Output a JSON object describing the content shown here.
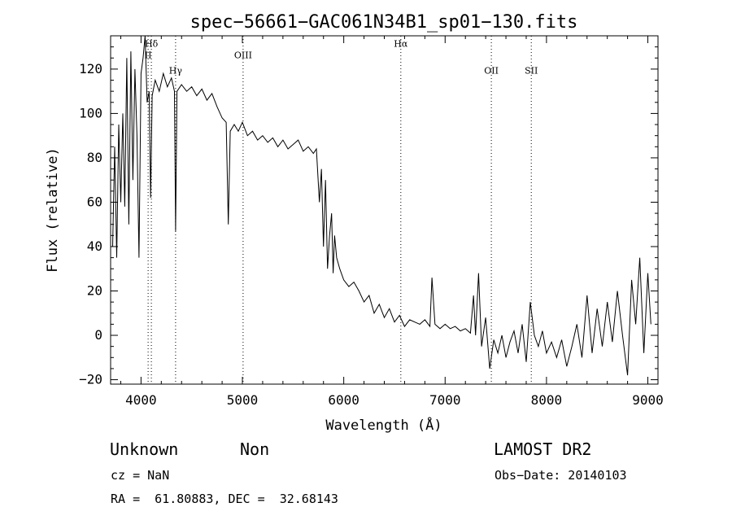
{
  "chart_data": {
    "type": "line",
    "title": "spec−56661−GAC061N34B1_sp01−130.fits",
    "xlabel": "Wavelength (Å)",
    "ylabel": "Flux (relative)",
    "xlim": [
      3700,
      9100
    ],
    "ylim": [
      -22,
      135
    ],
    "x_ticks": [
      4000,
      5000,
      6000,
      7000,
      8000,
      9000
    ],
    "y_ticks": [
      -20,
      0,
      20,
      40,
      60,
      80,
      100,
      120
    ],
    "grid": false,
    "line_color": "#000000",
    "lines": [
      {
        "label": "Hδ",
        "x": 4102,
        "label_y": 130
      },
      {
        "label": "II",
        "x": 4070,
        "label_y": 125
      },
      {
        "label": "Hγ",
        "x": 4341,
        "label_y": 118
      },
      {
        "label": "OIII",
        "x": 5007,
        "label_y": 125
      },
      {
        "label": "Hα",
        "x": 6563,
        "label_y": 130
      },
      {
        "label": "OII",
        "x": 7456,
        "label_y": 118
      },
      {
        "label": "SII",
        "x": 7850,
        "label_y": 118
      }
    ],
    "series": [
      {
        "values": [
          [
            3720,
            40
          ],
          [
            3740,
            85
          ],
          [
            3760,
            35
          ],
          [
            3780,
            95
          ],
          [
            3800,
            60
          ],
          [
            3820,
            100
          ],
          [
            3840,
            58
          ],
          [
            3860,
            125
          ],
          [
            3880,
            50
          ],
          [
            3900,
            128
          ],
          [
            3920,
            70
          ],
          [
            3940,
            120
          ],
          [
            3960,
            90
          ],
          [
            3980,
            35
          ],
          [
            4000,
            118
          ],
          [
            4020,
            125
          ],
          [
            4040,
            135
          ],
          [
            4060,
            105
          ],
          [
            4080,
            110
          ],
          [
            4095,
            62
          ],
          [
            4110,
            108
          ],
          [
            4140,
            115
          ],
          [
            4180,
            110
          ],
          [
            4220,
            118
          ],
          [
            4260,
            112
          ],
          [
            4300,
            116
          ],
          [
            4330,
            110
          ],
          [
            4341,
            47
          ],
          [
            4355,
            110
          ],
          [
            4400,
            113
          ],
          [
            4450,
            110
          ],
          [
            4500,
            112
          ],
          [
            4550,
            108
          ],
          [
            4600,
            111
          ],
          [
            4650,
            106
          ],
          [
            4700,
            109
          ],
          [
            4750,
            103
          ],
          [
            4800,
            98
          ],
          [
            4840,
            96
          ],
          [
            4861,
            50
          ],
          [
            4880,
            92
          ],
          [
            4920,
            95
          ],
          [
            4960,
            92
          ],
          [
            5000,
            96
          ],
          [
            5050,
            90
          ],
          [
            5100,
            92
          ],
          [
            5150,
            88
          ],
          [
            5200,
            90
          ],
          [
            5250,
            87
          ],
          [
            5300,
            89
          ],
          [
            5350,
            85
          ],
          [
            5400,
            88
          ],
          [
            5450,
            84
          ],
          [
            5500,
            86
          ],
          [
            5550,
            88
          ],
          [
            5600,
            83
          ],
          [
            5650,
            85
          ],
          [
            5700,
            82
          ],
          [
            5730,
            84
          ],
          [
            5760,
            60
          ],
          [
            5780,
            75
          ],
          [
            5800,
            40
          ],
          [
            5820,
            70
          ],
          [
            5840,
            30
          ],
          [
            5860,
            45
          ],
          [
            5880,
            55
          ],
          [
            5895,
            28
          ],
          [
            5910,
            45
          ],
          [
            5930,
            35
          ],
          [
            5960,
            30
          ],
          [
            6000,
            25
          ],
          [
            6050,
            22
          ],
          [
            6100,
            24
          ],
          [
            6150,
            20
          ],
          [
            6200,
            15
          ],
          [
            6250,
            18
          ],
          [
            6300,
            10
          ],
          [
            6350,
            14
          ],
          [
            6400,
            8
          ],
          [
            6450,
            12
          ],
          [
            6500,
            6
          ],
          [
            6550,
            9
          ],
          [
            6600,
            4
          ],
          [
            6650,
            7
          ],
          [
            6700,
            6
          ],
          [
            6750,
            5
          ],
          [
            6800,
            7
          ],
          [
            6850,
            4
          ],
          [
            6870,
            26
          ],
          [
            6900,
            5
          ],
          [
            6950,
            3
          ],
          [
            7000,
            5
          ],
          [
            7050,
            3
          ],
          [
            7100,
            4
          ],
          [
            7150,
            2
          ],
          [
            7200,
            3
          ],
          [
            7250,
            1
          ],
          [
            7280,
            18
          ],
          [
            7300,
            0
          ],
          [
            7330,
            28
          ],
          [
            7360,
            -5
          ],
          [
            7400,
            8
          ],
          [
            7440,
            -15
          ],
          [
            7480,
            -2
          ],
          [
            7520,
            -8
          ],
          [
            7560,
            0
          ],
          [
            7600,
            -10
          ],
          [
            7640,
            -3
          ],
          [
            7680,
            2
          ],
          [
            7720,
            -8
          ],
          [
            7760,
            5
          ],
          [
            7800,
            -12
          ],
          [
            7840,
            15
          ],
          [
            7880,
            0
          ],
          [
            7920,
            -5
          ],
          [
            7960,
            2
          ],
          [
            8000,
            -8
          ],
          [
            8050,
            -3
          ],
          [
            8100,
            -10
          ],
          [
            8150,
            -2
          ],
          [
            8200,
            -14
          ],
          [
            8250,
            -5
          ],
          [
            8300,
            5
          ],
          [
            8350,
            -10
          ],
          [
            8400,
            18
          ],
          [
            8450,
            -8
          ],
          [
            8500,
            12
          ],
          [
            8550,
            -5
          ],
          [
            8600,
            15
          ],
          [
            8650,
            -3
          ],
          [
            8700,
            20
          ],
          [
            8750,
            0
          ],
          [
            8800,
            -18
          ],
          [
            8840,
            25
          ],
          [
            8880,
            5
          ],
          [
            8920,
            35
          ],
          [
            8960,
            -8
          ],
          [
            9000,
            28
          ],
          [
            9030,
            5
          ]
        ]
      }
    ]
  },
  "info": {
    "class_label": "Unknown",
    "subclass_label": "Non",
    "survey": "LAMOST DR2",
    "cz": "cz = NaN",
    "obs_date": "Obs−Date: 20140103",
    "radec": "RA =  61.80883, DEC =  32.68143"
  }
}
